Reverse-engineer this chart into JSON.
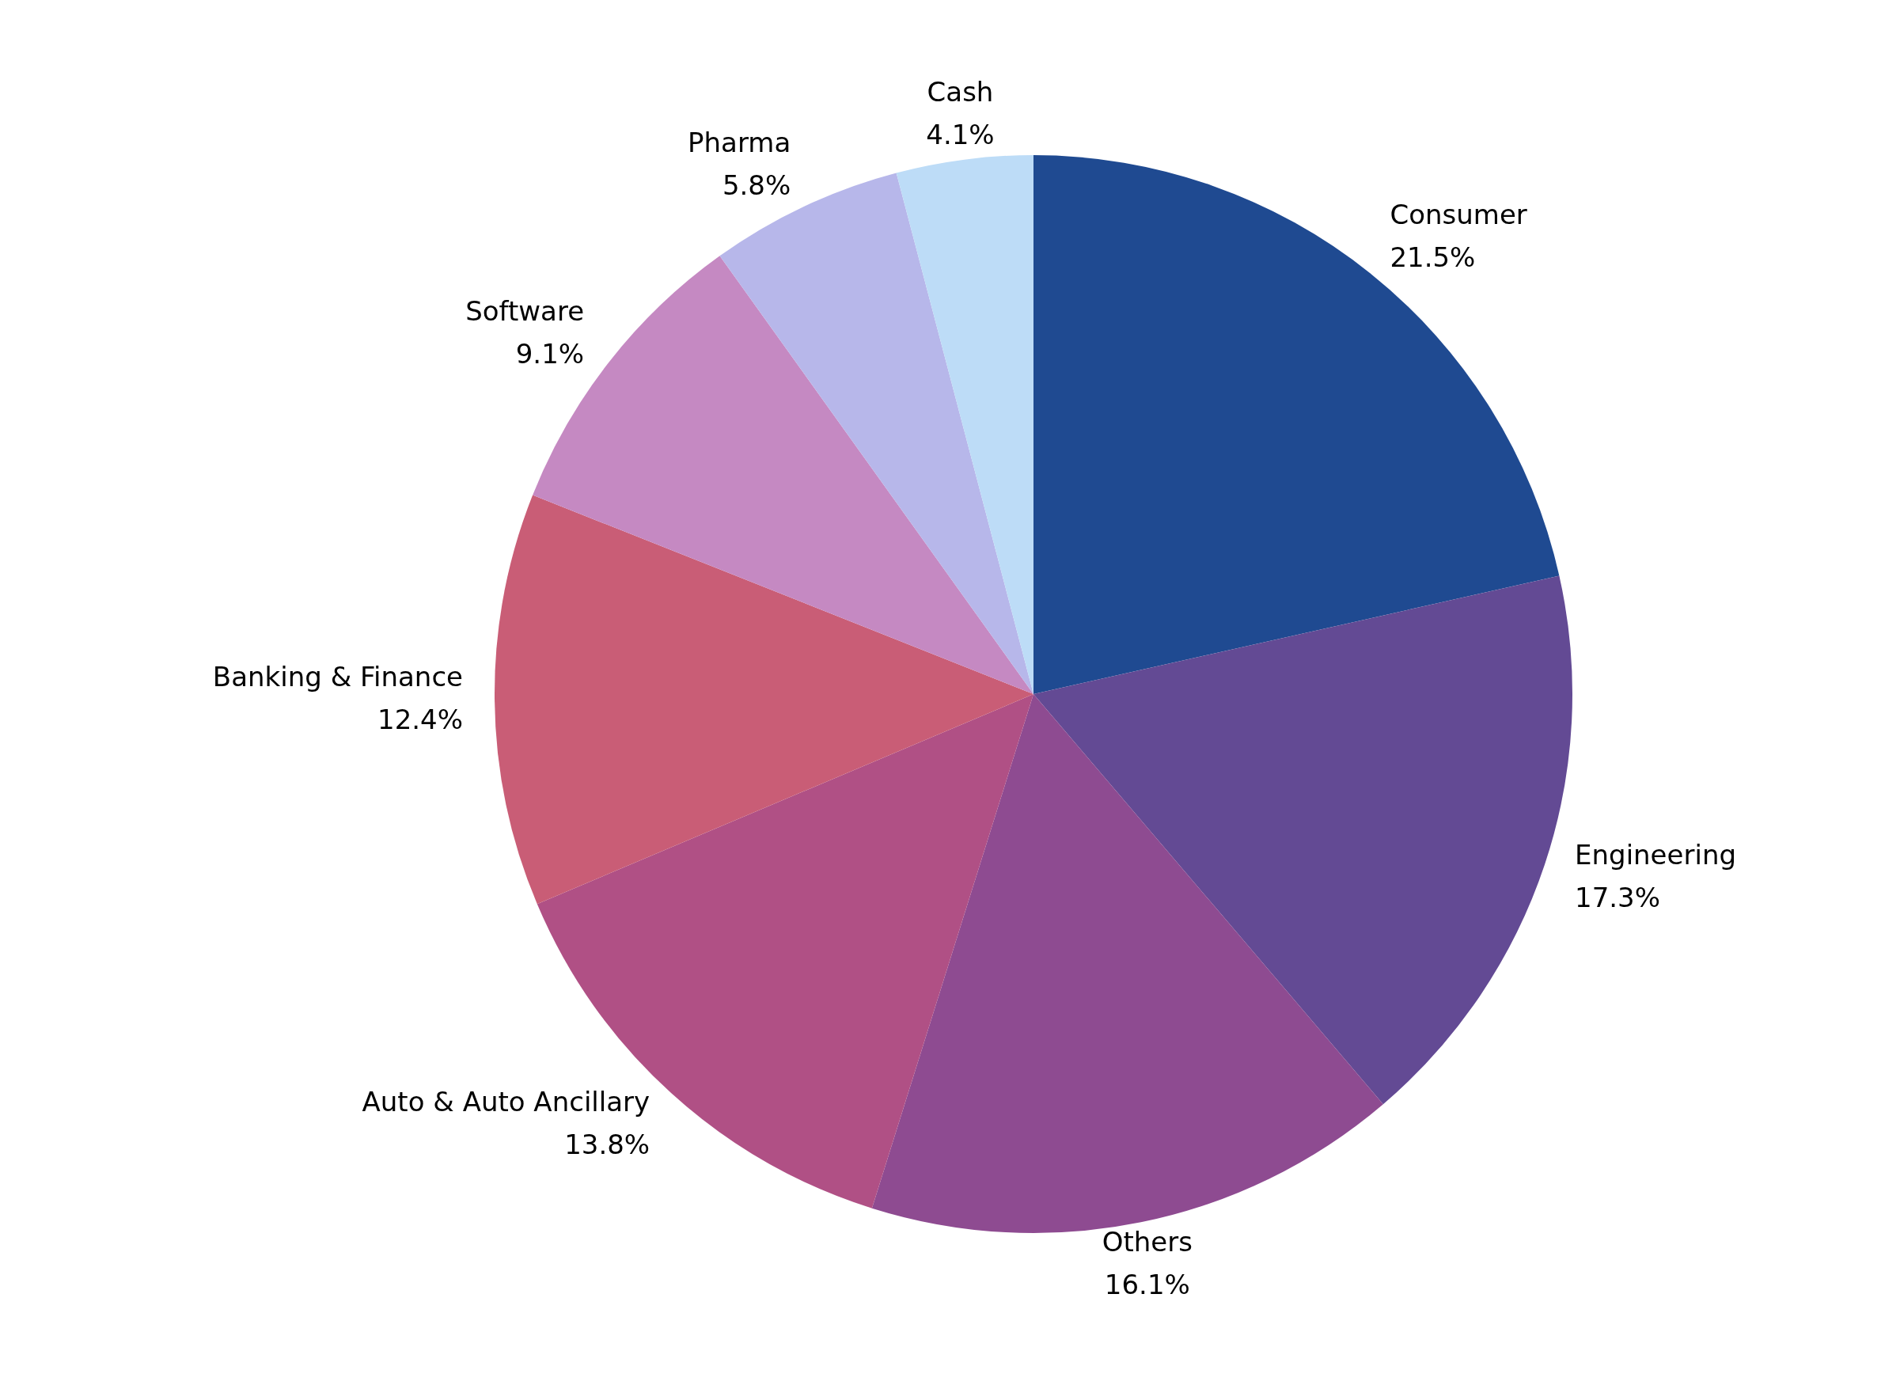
{
  "chart_data": {
    "type": "pie",
    "categories": [
      "Consumer",
      "Engineering",
      "Others",
      "Auto & Auto Ancillary",
      "Banking & Finance",
      "Software",
      "Pharma",
      "Cash"
    ],
    "values": [
      21.5,
      17.3,
      16.1,
      13.8,
      12.4,
      9.1,
      5.8,
      4.1
    ],
    "value_labels": [
      "21.5%",
      "17.3%",
      "16.1%",
      "13.8%",
      "12.4%",
      "9.1%",
      "5.8%",
      "4.1%"
    ],
    "colors": [
      "#1f4a91",
      "#634a94",
      "#8e4b91",
      "#b05085",
      "#c95d76",
      "#c589c2",
      "#b7b7ea",
      "#bddcf7"
    ],
    "legend": false
  }
}
